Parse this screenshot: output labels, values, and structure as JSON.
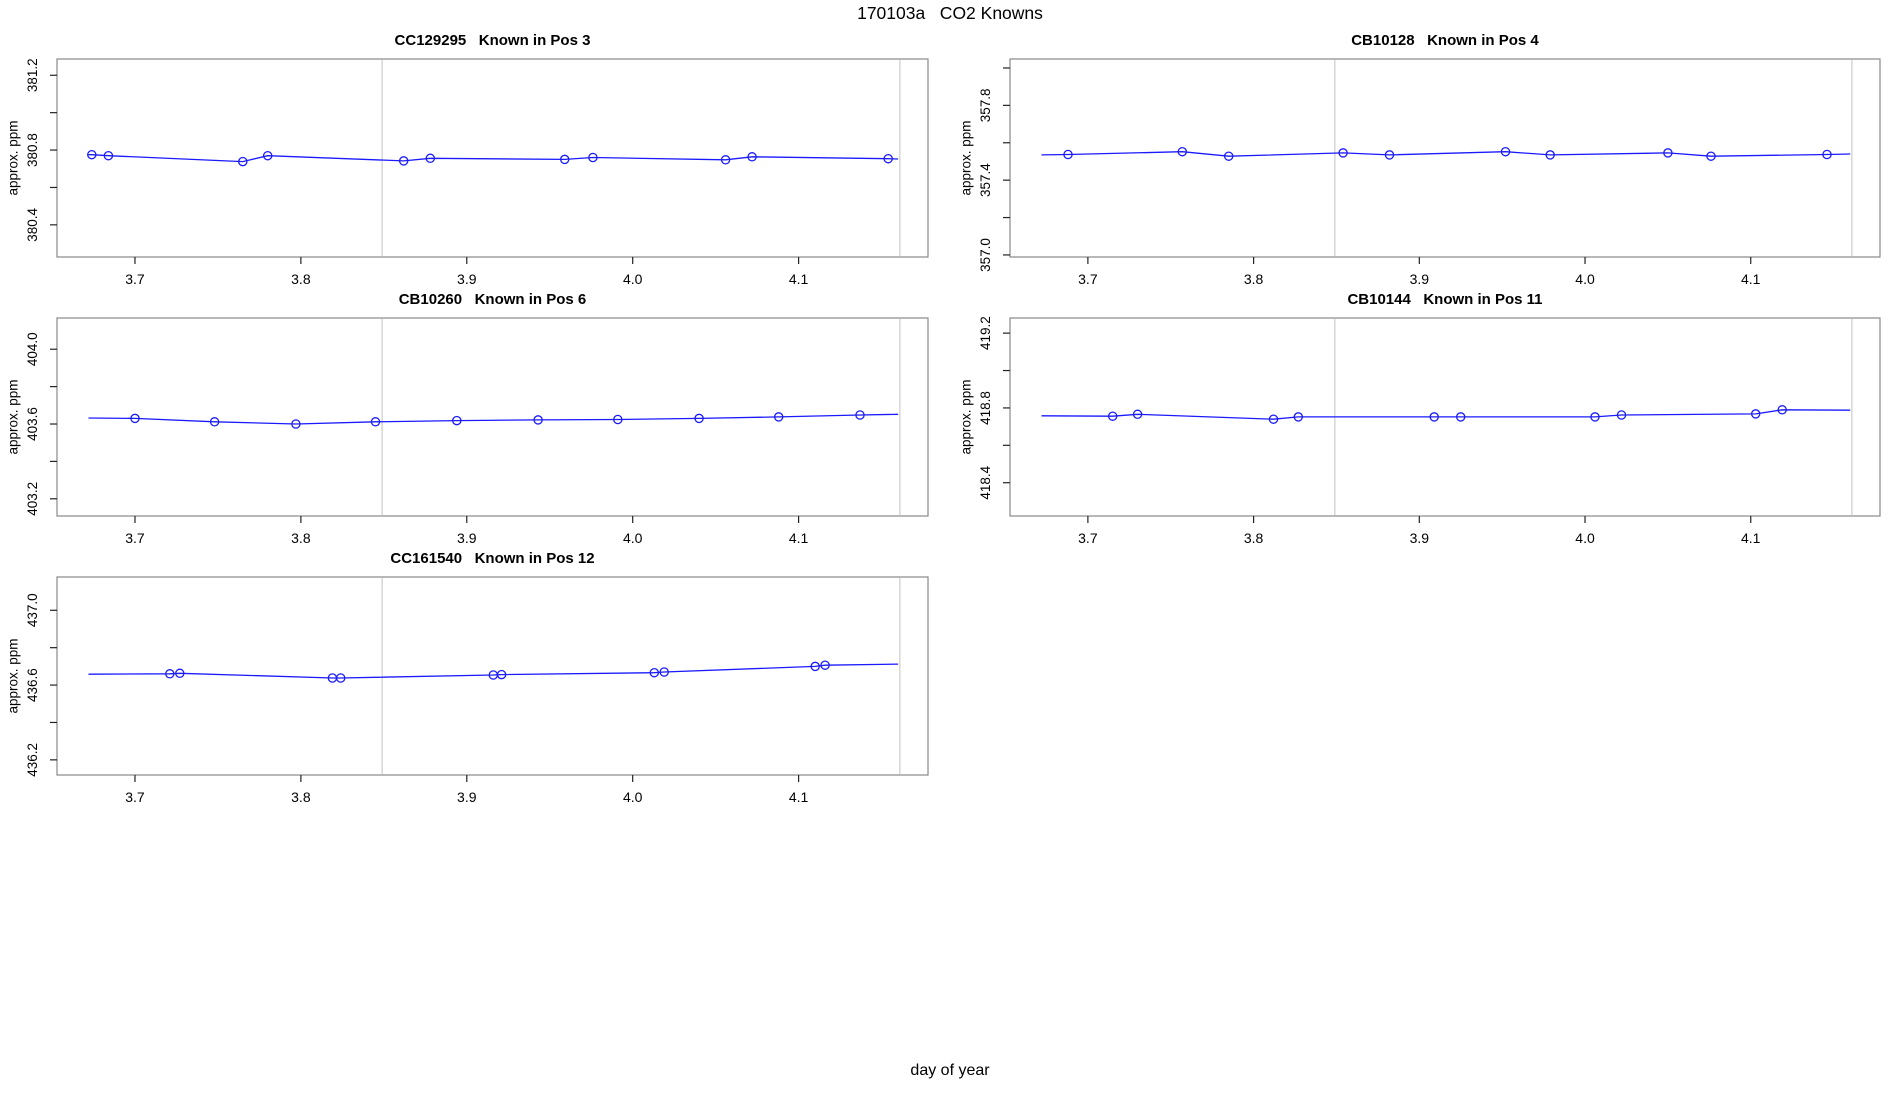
{
  "figure": {
    "title": "170103a   CO2 Knowns",
    "xlabel": "day of year",
    "background": "#ffffff"
  },
  "colors": {
    "series": "#1a1aff",
    "vline": "#d9d9d9",
    "box": "#888888",
    "tick": "#222222",
    "text": "#000000"
  },
  "chart_data": [
    {
      "type": "line",
      "title": "CC129295   Known in Pos 3",
      "title_id": "CC129295",
      "title_pos": "Known in Pos 3",
      "ylabel": "approx. ppm",
      "xlim": [
        3.653,
        4.178
      ],
      "ylim": [
        380.228,
        381.287
      ],
      "xticks": [
        {
          "v": 3.7,
          "label": "3.7"
        },
        {
          "v": 3.8,
          "label": "3.8"
        },
        {
          "v": 3.9,
          "label": "3.9"
        },
        {
          "v": 4.0,
          "label": "4.0"
        },
        {
          "v": 4.1,
          "label": "4.1"
        }
      ],
      "yticks": [
        {
          "v": 380.4,
          "label": "380.4"
        },
        {
          "v": 380.6,
          "label": ""
        },
        {
          "v": 380.8,
          "label": "380.8"
        },
        {
          "v": 381.0,
          "label": ""
        },
        {
          "v": 381.2,
          "label": "381.2"
        }
      ],
      "vlines": [
        3.849,
        4.161
      ],
      "grid": "off",
      "legend": "none",
      "marker": "open-circle",
      "points": {
        "x": [
          3.674,
          3.684,
          3.765,
          3.78,
          3.862,
          3.878,
          3.959,
          3.976,
          4.056,
          4.072,
          4.154
        ],
        "y": [
          380.775,
          380.77,
          380.738,
          380.77,
          380.742,
          380.756,
          380.75,
          380.76,
          380.748,
          380.764,
          380.754
        ]
      },
      "line": {
        "x": [
          3.672,
          3.674,
          3.684,
          3.765,
          3.78,
          3.862,
          3.878,
          3.959,
          3.976,
          4.056,
          4.072,
          4.154,
          4.16
        ],
        "y": [
          380.775,
          380.775,
          380.77,
          380.738,
          380.77,
          380.742,
          380.756,
          380.75,
          380.76,
          380.748,
          380.764,
          380.754,
          380.752
        ]
      }
    },
    {
      "type": "line",
      "title": "CB10128   Known in Pos 4",
      "title_id": "CB10128",
      "title_pos": "Known in Pos 4",
      "ylabel": "approx. ppm",
      "xlim": [
        3.653,
        4.178
      ],
      "ylim": [
        356.989,
        358.048
      ],
      "xticks": [
        {
          "v": 3.7,
          "label": "3.7"
        },
        {
          "v": 3.8,
          "label": "3.8"
        },
        {
          "v": 3.9,
          "label": "3.9"
        },
        {
          "v": 4.0,
          "label": "4.0"
        },
        {
          "v": 4.1,
          "label": "4.1"
        }
      ],
      "yticks": [
        {
          "v": 357.0,
          "label": "357.0"
        },
        {
          "v": 357.2,
          "label": ""
        },
        {
          "v": 357.4,
          "label": "357.4"
        },
        {
          "v": 357.6,
          "label": ""
        },
        {
          "v": 357.8,
          "label": "357.8"
        },
        {
          "v": 358.0,
          "label": ""
        }
      ],
      "vlines": [
        3.849,
        4.161
      ],
      "grid": "off",
      "legend": "none",
      "marker": "open-circle",
      "points": {
        "x": [
          3.688,
          3.757,
          3.785,
          3.854,
          3.882,
          3.952,
          3.979,
          4.05,
          4.076,
          4.146
        ],
        "y": [
          357.537,
          357.552,
          357.528,
          357.546,
          357.535,
          357.552,
          357.535,
          357.546,
          357.528,
          357.537
        ]
      },
      "line": {
        "x": [
          3.672,
          3.688,
          3.757,
          3.785,
          3.854,
          3.882,
          3.952,
          3.979,
          4.05,
          4.076,
          4.146,
          4.16
        ],
        "y": [
          357.535,
          357.537,
          357.552,
          357.528,
          357.546,
          357.535,
          357.552,
          357.535,
          357.546,
          357.528,
          357.537,
          357.54
        ]
      }
    },
    {
      "type": "line",
      "title": "CB10260   Known in Pos 6",
      "title_id": "CB10260",
      "title_pos": "Known in Pos 6",
      "ylabel": "approx. ppm",
      "xlim": [
        3.653,
        4.178
      ],
      "ylim": [
        403.108,
        404.167
      ],
      "xticks": [
        {
          "v": 3.7,
          "label": "3.7"
        },
        {
          "v": 3.8,
          "label": "3.8"
        },
        {
          "v": 3.9,
          "label": "3.9"
        },
        {
          "v": 4.0,
          "label": "4.0"
        },
        {
          "v": 4.1,
          "label": "4.1"
        }
      ],
      "yticks": [
        {
          "v": 403.2,
          "label": "403.2"
        },
        {
          "v": 403.4,
          "label": ""
        },
        {
          "v": 403.6,
          "label": "403.6"
        },
        {
          "v": 403.8,
          "label": ""
        },
        {
          "v": 404.0,
          "label": "404.0"
        }
      ],
      "vlines": [
        3.849,
        4.161
      ],
      "grid": "off",
      "legend": "none",
      "marker": "open-circle",
      "points": {
        "x": [
          3.7,
          3.748,
          3.797,
          3.845,
          3.894,
          3.943,
          3.991,
          4.04,
          4.088,
          4.137
        ],
        "y": [
          403.63,
          403.612,
          403.6,
          403.612,
          403.618,
          403.622,
          403.624,
          403.63,
          403.638,
          403.648
        ]
      },
      "line": {
        "x": [
          3.672,
          3.7,
          3.748,
          3.797,
          3.845,
          3.894,
          3.943,
          3.991,
          4.04,
          4.088,
          4.137,
          4.16
        ],
        "y": [
          403.632,
          403.63,
          403.612,
          403.6,
          403.612,
          403.618,
          403.622,
          403.624,
          403.63,
          403.638,
          403.648,
          403.652
        ]
      }
    },
    {
      "type": "line",
      "title": "CB10144   Known in Pos 11",
      "title_id": "CB10144",
      "title_pos": "Known in Pos 11",
      "ylabel": "approx. ppm",
      "xlim": [
        3.653,
        4.178
      ],
      "ylim": [
        418.222,
        419.281
      ],
      "xticks": [
        {
          "v": 3.7,
          "label": "3.7"
        },
        {
          "v": 3.8,
          "label": "3.8"
        },
        {
          "v": 3.9,
          "label": "3.9"
        },
        {
          "v": 4.0,
          "label": "4.0"
        },
        {
          "v": 4.1,
          "label": "4.1"
        }
      ],
      "yticks": [
        {
          "v": 418.4,
          "label": "418.4"
        },
        {
          "v": 418.6,
          "label": ""
        },
        {
          "v": 418.8,
          "label": "418.8"
        },
        {
          "v": 419.0,
          "label": ""
        },
        {
          "v": 419.2,
          "label": "419.2"
        }
      ],
      "vlines": [
        3.849,
        4.161
      ],
      "grid": "off",
      "legend": "none",
      "marker": "open-circle",
      "points": {
        "x": [
          3.715,
          3.73,
          3.812,
          3.827,
          3.909,
          3.925,
          4.006,
          4.022,
          4.103,
          4.119
        ],
        "y": [
          418.756,
          418.766,
          418.74,
          418.752,
          418.752,
          418.752,
          418.752,
          418.762,
          418.768,
          418.79
        ]
      },
      "line": {
        "x": [
          3.672,
          3.715,
          3.73,
          3.812,
          3.827,
          3.909,
          3.925,
          4.006,
          4.022,
          4.103,
          4.119,
          4.16
        ],
        "y": [
          418.758,
          418.756,
          418.766,
          418.74,
          418.752,
          418.752,
          418.752,
          418.752,
          418.762,
          418.768,
          418.79,
          418.788
        ]
      }
    },
    {
      "type": "line",
      "title": "CC161540   Known in Pos 12",
      "title_id": "CC161540",
      "title_pos": "Known in Pos 12",
      "ylabel": "approx. ppm",
      "xlim": [
        3.653,
        4.178
      ],
      "ylim": [
        436.119,
        437.178
      ],
      "xticks": [
        {
          "v": 3.7,
          "label": "3.7"
        },
        {
          "v": 3.8,
          "label": "3.8"
        },
        {
          "v": 3.9,
          "label": "3.9"
        },
        {
          "v": 4.0,
          "label": "4.0"
        },
        {
          "v": 4.1,
          "label": "4.1"
        }
      ],
      "yticks": [
        {
          "v": 436.2,
          "label": "436.2"
        },
        {
          "v": 436.4,
          "label": ""
        },
        {
          "v": 436.6,
          "label": "436.6"
        },
        {
          "v": 436.8,
          "label": ""
        },
        {
          "v": 437.0,
          "label": "437.0"
        }
      ],
      "vlines": [
        3.849,
        4.161
      ],
      "grid": "off",
      "legend": "none",
      "marker": "open-circle",
      "points": {
        "x": [
          3.721,
          3.727,
          3.819,
          3.824,
          3.916,
          3.921,
          4.013,
          4.019,
          4.11,
          4.116
        ],
        "y": [
          436.66,
          436.663,
          436.638,
          436.638,
          436.654,
          436.656,
          436.666,
          436.67,
          436.7,
          436.706
        ]
      },
      "line": {
        "x": [
          3.672,
          3.721,
          3.727,
          3.819,
          3.824,
          3.916,
          3.921,
          4.013,
          4.019,
          4.11,
          4.116,
          4.16
        ],
        "y": [
          436.658,
          436.66,
          436.663,
          436.638,
          436.638,
          436.654,
          436.656,
          436.666,
          436.67,
          436.7,
          436.706,
          436.712
        ]
      }
    }
  ]
}
